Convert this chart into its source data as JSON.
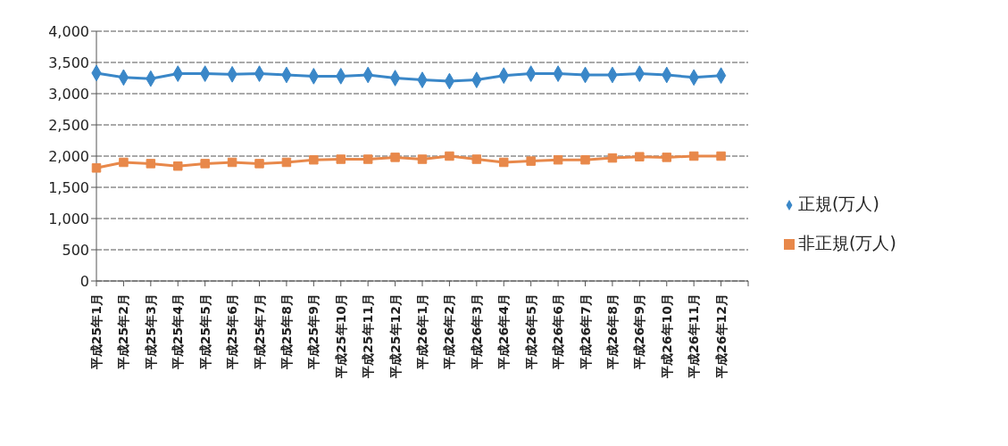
{
  "chart_data": {
    "type": "line",
    "categories": [
      "平成25年1月",
      "平成25年2月",
      "平成25年3月",
      "平成25年4月",
      "平成25年5月",
      "平成25年6月",
      "平成25年7月",
      "平成25年8月",
      "平成25年9月",
      "平成25年10月",
      "平成25年11月",
      "平成25年12月",
      "平成26年1月",
      "平成26年2月",
      "平成26年3月",
      "平成26年4月",
      "平成26年5月",
      "平成26年6月",
      "平成26年7月",
      "平成26年8月",
      "平成26年9月",
      "平成26年10月",
      "平成26年11月",
      "平成26年12月",
      null
    ],
    "series": [
      {
        "name": "正規(万人)",
        "color": "#3a87c8",
        "marker": "diamond",
        "values": [
          3330,
          3260,
          3240,
          3320,
          3320,
          3310,
          3320,
          3300,
          3280,
          3280,
          3300,
          3250,
          3220,
          3200,
          3220,
          3290,
          3320,
          3320,
          3300,
          3300,
          3320,
          3300,
          3260,
          3290,
          null
        ]
      },
      {
        "name": "非正規(万人)",
        "color": "#e8884a",
        "marker": "square",
        "values": [
          1810,
          1900,
          1880,
          1840,
          1880,
          1900,
          1880,
          1900,
          1940,
          1950,
          1950,
          1980,
          1950,
          2000,
          1950,
          1900,
          1920,
          1940,
          1940,
          1970,
          1990,
          1980,
          2000,
          2000,
          null
        ]
      }
    ],
    "ylim": [
      0,
      4000
    ],
    "yticks": [
      {
        "value": 0,
        "label": "0"
      },
      {
        "value": 500,
        "label": "500"
      },
      {
        "value": 1000,
        "label": "1,000"
      },
      {
        "value": 1500,
        "label": "1,500"
      },
      {
        "value": 2000,
        "label": "2,000"
      },
      {
        "value": 2500,
        "label": "2,500"
      },
      {
        "value": 3000,
        "label": "3,000"
      },
      {
        "value": 3500,
        "label": "3,500"
      },
      {
        "value": 4000,
        "label": "4,000"
      }
    ],
    "grid": "y",
    "legend": "right",
    "line_style": "solid"
  }
}
